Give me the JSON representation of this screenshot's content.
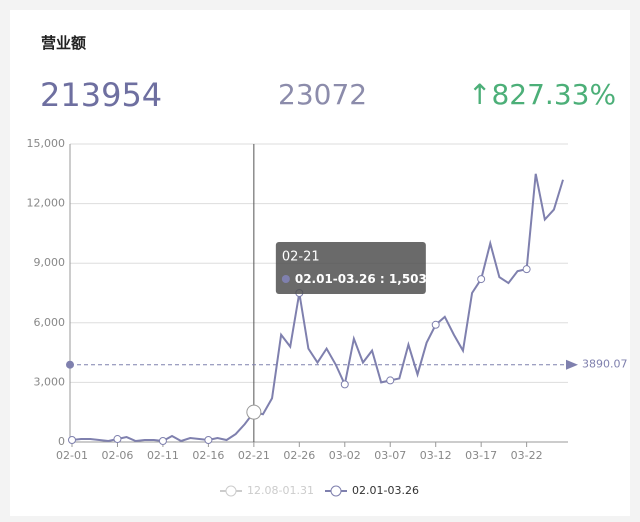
{
  "stats": {
    "title": "营业额",
    "current": 213954,
    "previous": 23072,
    "change": "827.33%"
  },
  "chart_data": {
    "type": "line",
    "categories": [
      "02-01",
      null,
      null,
      null,
      null,
      "02-06",
      null,
      null,
      null,
      null,
      "02-11",
      null,
      null,
      null,
      null,
      "02-16",
      null,
      null,
      null,
      null,
      "02-21",
      null,
      null,
      null,
      null,
      "02-26",
      null,
      null,
      null,
      null,
      "03-02",
      null,
      null,
      null,
      null,
      "03-07",
      null,
      null,
      null,
      null,
      "03-12",
      null,
      null,
      null,
      null,
      "03-17",
      null,
      null,
      null,
      null,
      "03-22",
      null,
      null,
      null,
      null
    ],
    "series": [
      {
        "name": "02.01-03.26",
        "color": "#7f80ae",
        "values": [
          100,
          150,
          150,
          100,
          50,
          150,
          250,
          50,
          100,
          100,
          50,
          300,
          50,
          200,
          150,
          100,
          200,
          100,
          400,
          900,
          1503,
          1400,
          2200,
          5400,
          4800,
          7500,
          4700,
          4000,
          4700,
          3900,
          2900,
          5200,
          4000,
          4600,
          3000,
          3100,
          3200,
          4900,
          3400,
          5000,
          5900,
          6300,
          5400,
          4600,
          7500,
          8200,
          10000,
          8300,
          8000,
          8600,
          8700,
          13500,
          11200,
          11700,
          13200
        ]
      }
    ],
    "legend_inactive": {
      "name": "12.08-01.31",
      "color": "#cccccc"
    },
    "mark_line": 3890.07,
    "tooltip": {
      "value_label": "1,503"
    },
    "ylim": [
      0,
      15000
    ],
    "yticks": [
      0,
      {
        "value": 3000,
        "label": "3,000"
      },
      {
        "value": 6000,
        "label": "6,000"
      },
      {
        "value": 9000,
        "label": "9,000"
      },
      {
        "value": 12000,
        "label": "12,000"
      },
      {
        "value": 15000,
        "label": "15,000"
      }
    ],
    "grid": true
  }
}
